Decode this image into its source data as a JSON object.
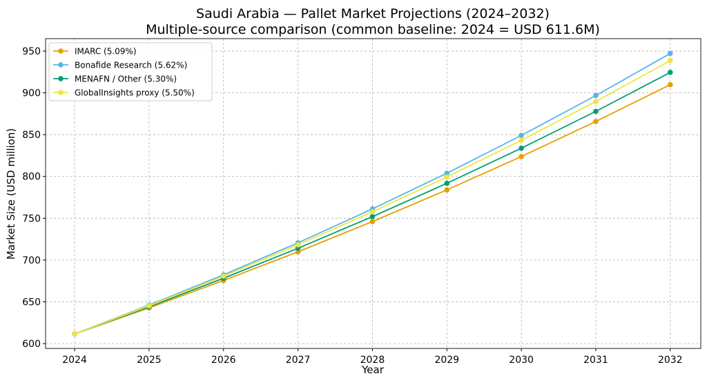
{
  "chart_data": {
    "type": "line",
    "title": "Saudi Arabia — Pallet Market Projections (2024–2032)",
    "subtitle": "Multiple-source comparison (common baseline: 2024 = USD 611.6M)",
    "xlabel": "Year",
    "ylabel": "Market Size (USD million)",
    "x": [
      2024,
      2025,
      2026,
      2027,
      2028,
      2029,
      2030,
      2031,
      2032
    ],
    "xlim": [
      2023.61,
      2032.41
    ],
    "ylim": [
      594.2,
      964.9
    ],
    "yticks": [
      600,
      650,
      700,
      750,
      800,
      850,
      900,
      950
    ],
    "grid": true,
    "legend_position": "top-left",
    "series": [
      {
        "name": "IMARC (5.09%)",
        "color": "#E69F00",
        "values": [
          611.6,
          642.7,
          675.5,
          709.8,
          746.0,
          783.9,
          823.8,
          865.8,
          909.8
        ]
      },
      {
        "name": "Bonafide Research (5.62%)",
        "color": "#56B4E9",
        "values": [
          611.6,
          646.0,
          682.3,
          720.6,
          761.1,
          803.9,
          849.1,
          896.8,
          947.2
        ]
      },
      {
        "name": "MENAFN / Other (5.30%)",
        "color": "#009E73",
        "values": [
          611.6,
          644.0,
          678.2,
          714.1,
          751.9,
          791.8,
          833.8,
          877.9,
          924.5
        ]
      },
      {
        "name": "GlobalInsights proxy (5.50%)",
        "color": "#F0E442",
        "values": [
          611.6,
          645.2,
          680.7,
          718.2,
          757.7,
          799.3,
          843.3,
          889.7,
          938.6
        ]
      }
    ]
  }
}
